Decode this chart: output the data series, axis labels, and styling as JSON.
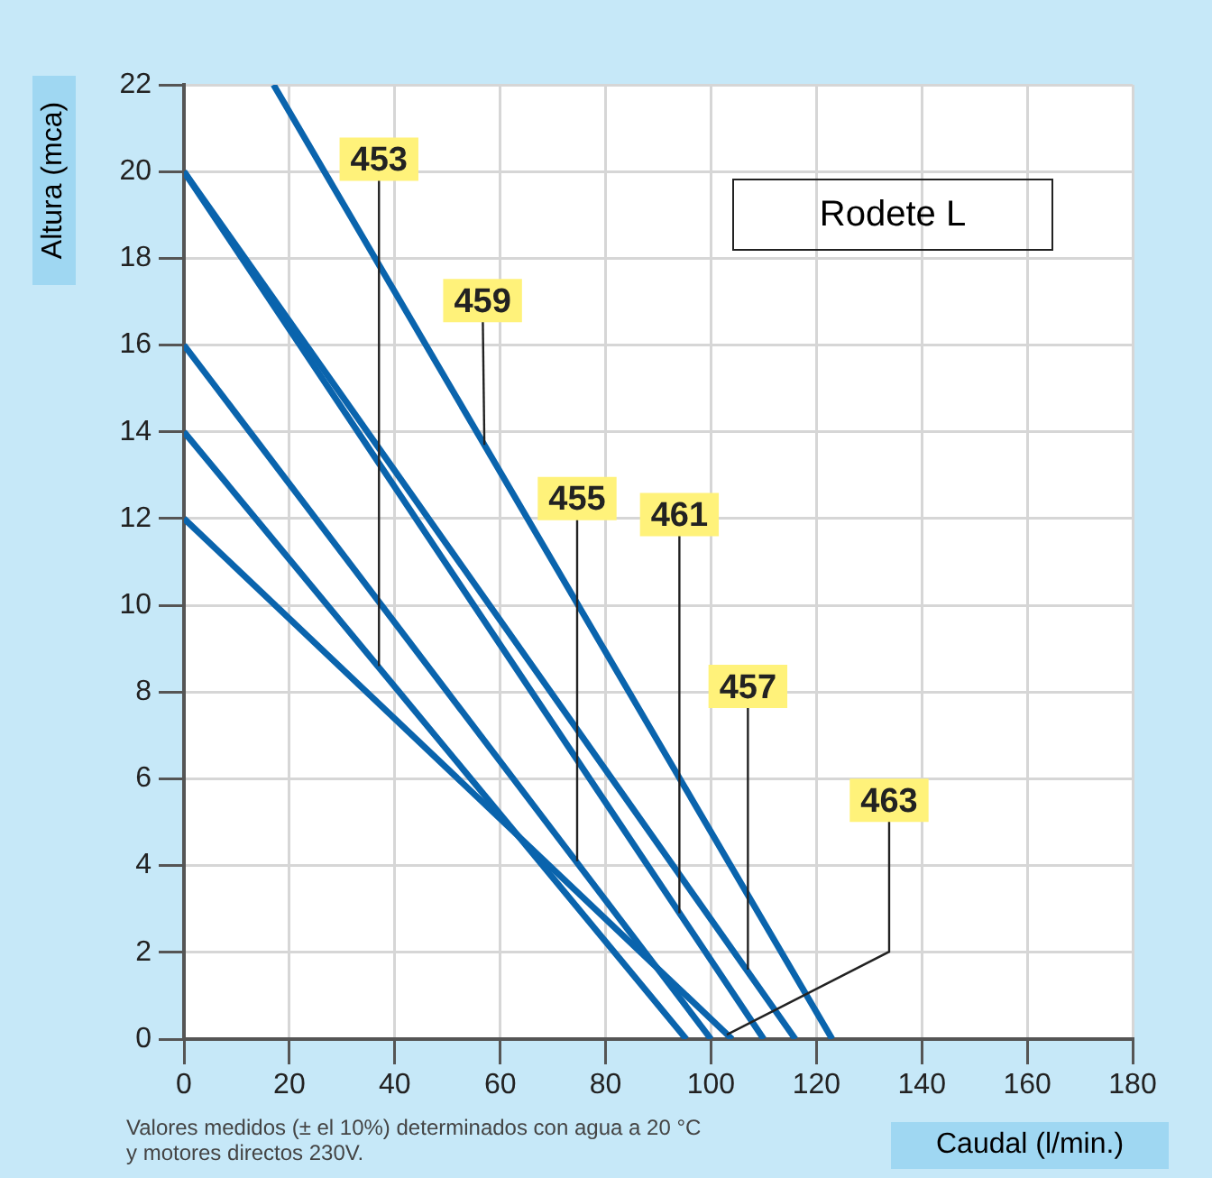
{
  "chart_data": {
    "type": "line",
    "xlabel": "Caudal (l/min.)",
    "ylabel": "Altura (mca)",
    "xlim": [
      0,
      180
    ],
    "xticks": [
      0,
      20,
      40,
      60,
      80,
      100,
      120,
      140,
      160,
      180
    ],
    "ylim": [
      0,
      22
    ],
    "yticks": [
      0,
      2,
      4,
      6,
      8,
      10,
      12,
      14,
      16,
      18,
      20,
      22
    ],
    "grid": true,
    "legend": false,
    "marker": "none",
    "line_style": "solid",
    "series": [
      {
        "color": "#0a64ad",
        "x": [
          17,
          123
        ],
        "values": [
          22,
          0
        ]
      },
      {
        "color": "#0a64ad",
        "x": [
          0,
          116
        ],
        "values": [
          20,
          0
        ]
      },
      {
        "color": "#0a64ad",
        "x": [
          0,
          110
        ],
        "values": [
          20,
          0
        ]
      },
      {
        "color": "#0a64ad",
        "x": [
          0,
          100
        ],
        "values": [
          16,
          0
        ]
      },
      {
        "color": "#0a64ad",
        "x": [
          0,
          95.3
        ],
        "values": [
          14,
          0
        ]
      },
      {
        "color": "#0a64ad",
        "x": [
          0,
          104
        ],
        "values": [
          12,
          0
        ]
      }
    ],
    "annotations": [
      "Rodete L",
      "Valores medidos (± el 10%) determinados con agua a 20 °C\ny motores directos 230V.",
      {
        "text": "453",
        "x": 37,
        "y": 8.6
      },
      {
        "text": "459",
        "x": 57,
        "y": 13.7
      },
      {
        "text": "455",
        "x": 74.6,
        "y": 4.1
      },
      {
        "text": "461",
        "x": 94,
        "y": 2.9
      },
      {
        "text": "457",
        "x": 107,
        "y": 1.6
      },
      {
        "text": "463",
        "x": 103,
        "y": 0.1
      }
    ]
  }
}
